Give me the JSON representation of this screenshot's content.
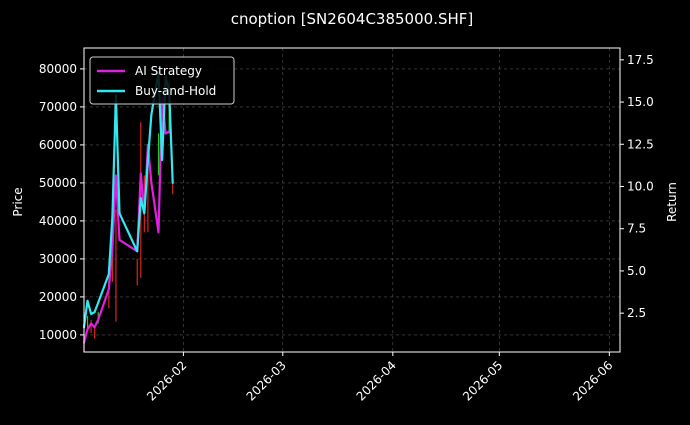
{
  "chart_data": {
    "type": "line",
    "title": "cnoption [SN2604C385000.SHF]",
    "ylabel": "Price",
    "ylabel_right": "Return",
    "x_ticks": [
      "2026-02",
      "2026-03",
      "2026-04",
      "2026-05",
      "2026-06"
    ],
    "y_ticks": [
      10000,
      20000,
      30000,
      40000,
      50000,
      60000,
      70000,
      80000
    ],
    "y_right_ticks": [
      2.5,
      5.0,
      7.5,
      10.0,
      12.5,
      15.0,
      17.5
    ],
    "xlim": [
      "2026-01-04",
      "2026-06-04"
    ],
    "ylim": [
      5500,
      85500
    ],
    "ylim_right": [
      0.2,
      18.2
    ],
    "grid": true,
    "legend": "top-left",
    "colors": {
      "ai": "#e020e0",
      "bh": "#30e8f0",
      "up": "#22cc22",
      "down": "#dd2222",
      "grid": "#555555"
    },
    "series": [
      {
        "name": "AI Strategy",
        "x": [
          "2026-01-04",
          "2026-01-05",
          "2026-01-06",
          "2026-01-07",
          "2026-01-08",
          "2026-01-11",
          "2026-01-12",
          "2026-01-13",
          "2026-01-14",
          "2026-01-19",
          "2026-01-20",
          "2026-01-21",
          "2026-01-22",
          "2026-01-23",
          "2026-01-25",
          "2026-01-26",
          "2026-01-27",
          "2026-01-28"
        ],
        "values": [
          8000,
          11500,
          13000,
          12000,
          14000,
          22000,
          33000,
          52000,
          35000,
          32000,
          52500,
          42000,
          60000,
          50000,
          37000,
          72500,
          63000,
          63500
        ]
      },
      {
        "name": "Buy-and-Hold",
        "x": [
          "2026-01-04",
          "2026-01-05",
          "2026-01-06",
          "2026-01-07",
          "2026-01-08",
          "2026-01-11",
          "2026-01-12",
          "2026-01-13",
          "2026-01-14",
          "2026-01-19",
          "2026-01-20",
          "2026-01-21",
          "2026-01-22",
          "2026-01-23",
          "2026-01-25",
          "2026-01-26",
          "2026-01-27",
          "2026-01-28",
          "2026-01-29"
        ],
        "values": [
          12000,
          19000,
          15500,
          16000,
          18500,
          26000,
          41000,
          73000,
          42000,
          32000,
          46000,
          42000,
          56000,
          68000,
          79000,
          56000,
          78000,
          74000,
          50000
        ]
      }
    ],
    "candles": [
      {
        "x": "2026-01-04",
        "open": 9000,
        "close": 5500
      },
      {
        "x": "2026-01-05",
        "open": 11000,
        "close": 15000
      },
      {
        "x": "2026-01-06",
        "open": 14000,
        "close": 10500
      },
      {
        "x": "2026-01-07",
        "open": 12500,
        "close": 9000
      },
      {
        "x": "2026-01-08",
        "open": 13000,
        "close": 16000
      },
      {
        "x": "2026-01-11",
        "open": 25000,
        "close": 17000
      },
      {
        "x": "2026-01-12",
        "open": 33000,
        "close": 24000
      },
      {
        "x": "2026-01-13",
        "open": 43000,
        "close": 13500
      },
      {
        "x": "2026-01-19",
        "open": 30000,
        "close": 23000
      },
      {
        "x": "2026-01-20",
        "open": 66000,
        "close": 25000
      },
      {
        "x": "2026-01-21",
        "open": 52000,
        "close": 37000
      },
      {
        "x": "2026-01-22",
        "open": 58000,
        "close": 37000
      },
      {
        "x": "2026-01-25",
        "open": 52000,
        "close": 63000
      },
      {
        "x": "2026-01-26",
        "open": 62000,
        "close": 58000
      },
      {
        "x": "2026-01-28",
        "open": 63000,
        "close": 77000
      },
      {
        "x": "2026-01-29",
        "open": 52000,
        "close": 47000
      }
    ]
  }
}
